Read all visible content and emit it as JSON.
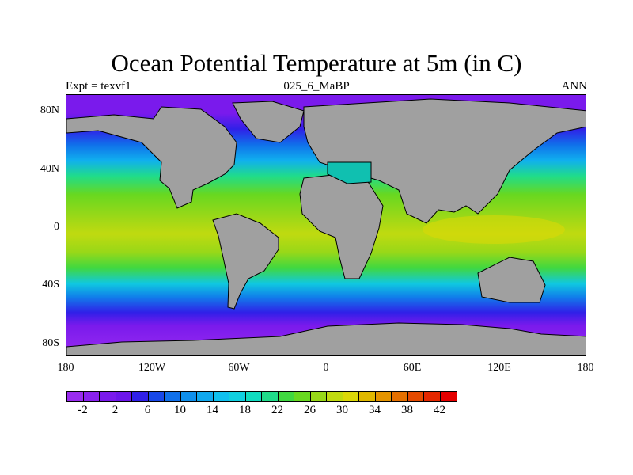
{
  "header": {
    "title": "Ocean Potential Temperature at 5m (in C)",
    "left_label": "Expt = texvf1",
    "center_label": "025_6_MaBP",
    "right_label": "ANN"
  },
  "map": {
    "lat_labels": [
      "80N",
      "40N",
      "0",
      "40S",
      "80S"
    ],
    "lon_labels": [
      "180",
      "120W",
      "60W",
      "0",
      "60E",
      "120E",
      "180"
    ],
    "land_color": "#a0a0a0",
    "coastline_color": "#000000"
  },
  "colorbar": {
    "colors": [
      "#9a2cf0",
      "#8a22ee",
      "#7a1aec",
      "#6c16ea",
      "#3020e8",
      "#1848e8",
      "#1070ea",
      "#1090ec",
      "#10a8ee",
      "#10c0ee",
      "#10d0e0",
      "#10dcc0",
      "#20dc8a",
      "#40d840",
      "#68d820",
      "#98d818",
      "#c0da10",
      "#dcd808",
      "#e0b800",
      "#e49400",
      "#e47000",
      "#e44a00",
      "#e42800",
      "#e40000"
    ],
    "labels": [
      "-2",
      "2",
      "6",
      "10",
      "14",
      "18",
      "22",
      "26",
      "30",
      "34",
      "38",
      "42"
    ]
  }
}
